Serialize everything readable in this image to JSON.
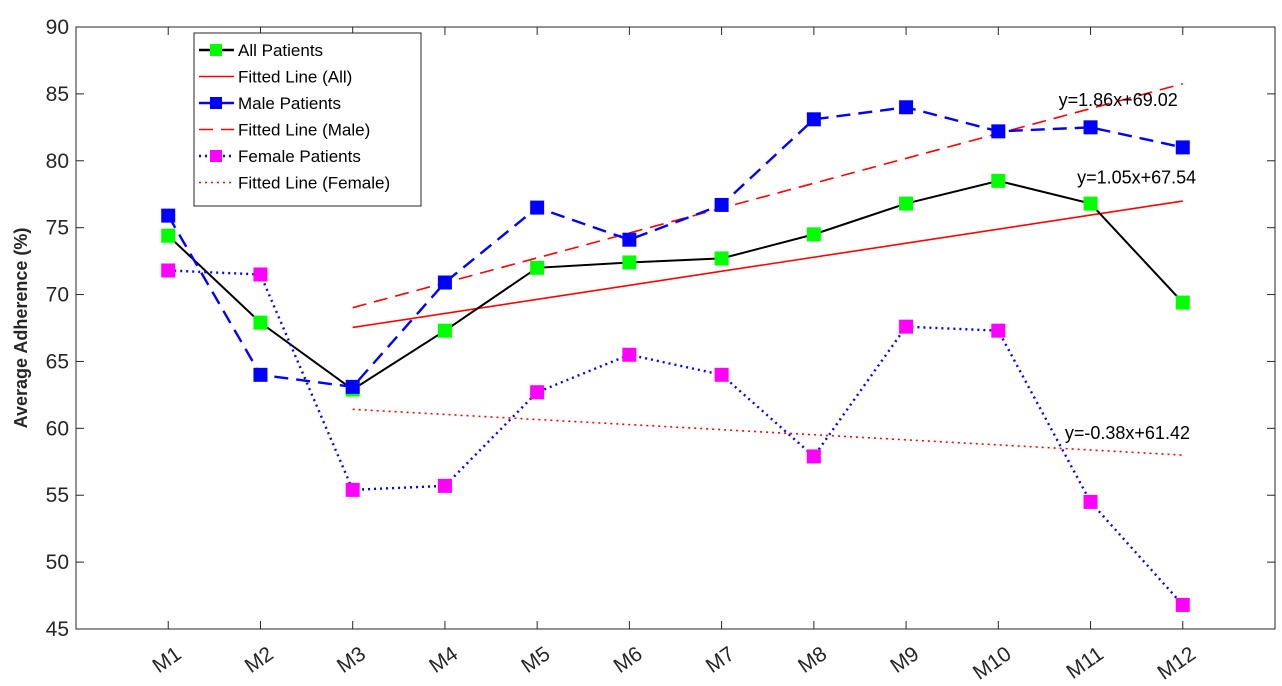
{
  "chart_data": {
    "type": "line",
    "title": "",
    "xlabel": "",
    "ylabel": "Average Adherence (%)",
    "categories": [
      "M1",
      "M2",
      "M3",
      "M4",
      "M5",
      "M6",
      "M7",
      "M8",
      "M9",
      "M10",
      "M11",
      "M12"
    ],
    "ylim": [
      45,
      90
    ],
    "yticks": [
      45,
      50,
      55,
      60,
      65,
      70,
      75,
      80,
      85,
      90
    ],
    "grid": false,
    "legend_position": "top-left",
    "series": [
      {
        "name": "All Patients",
        "color": "#000000",
        "marker_color": "#00ff00",
        "line_style": "solid",
        "marker": "square",
        "values": [
          74.4,
          67.9,
          62.9,
          67.3,
          72.0,
          72.4,
          72.7,
          74.5,
          76.8,
          78.5,
          76.8,
          69.4
        ]
      },
      {
        "name": "Fitted Line (All)",
        "color": "#ff0000",
        "line_style": "solid",
        "marker": "none",
        "fit": {
          "slope": 1.05,
          "intercept": 67.54,
          "x_start": 3,
          "x_end": 12
        }
      },
      {
        "name": "Male Patients",
        "color": "#0000ff",
        "marker_color": "#0000ff",
        "line_style": "dashed",
        "marker": "square",
        "values": [
          75.9,
          64.0,
          63.1,
          70.9,
          76.5,
          74.1,
          76.7,
          83.1,
          84.0,
          82.2,
          82.5,
          81.0
        ]
      },
      {
        "name": "Fitted Line (Male)",
        "color": "#ff0000",
        "line_style": "dashed",
        "marker": "none",
        "fit": {
          "slope": 1.86,
          "intercept": 69.02,
          "x_start": 3,
          "x_end": 12
        }
      },
      {
        "name": "Female Patients",
        "color": "#0000ff",
        "marker_color": "#ff00ff",
        "line_style": "dotted",
        "marker": "square",
        "values": [
          71.8,
          71.5,
          55.4,
          55.7,
          62.7,
          65.5,
          64.0,
          57.9,
          67.6,
          67.3,
          54.5,
          46.8
        ]
      },
      {
        "name": "Fitted Line (Female)",
        "color": "#ff0000",
        "line_style": "dotted",
        "marker": "none",
        "fit": {
          "slope": -0.38,
          "intercept": 61.42,
          "x_start": 3,
          "x_end": 12
        }
      }
    ],
    "annotations": [
      {
        "text": "y=1.86x+69.02",
        "x": 11.3,
        "y": 84.1
      },
      {
        "text": "y=1.05x+67.54",
        "x": 11.5,
        "y": 78.3
      },
      {
        "text": "y=-0.38x+61.42",
        "x": 11.4,
        "y": 59.2
      }
    ]
  }
}
